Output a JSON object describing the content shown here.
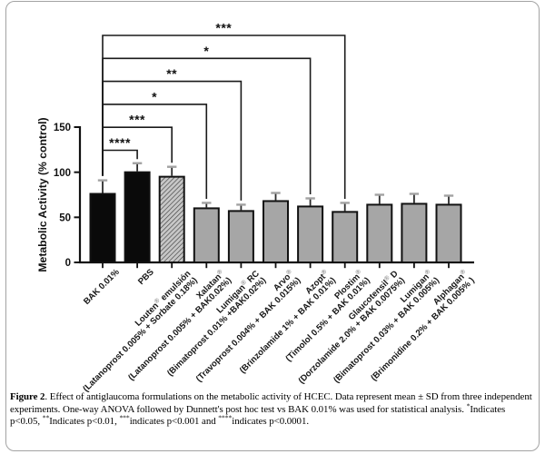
{
  "chart_data": {
    "type": "bar",
    "title": "",
    "xlabel": "",
    "ylabel": "Metabolic Activity (% control)",
    "ylim": [
      0,
      150
    ],
    "yticks": [
      0,
      50,
      100,
      150
    ],
    "grid": false,
    "legend": "none",
    "categories": [
      {
        "name": "BAK 0.01%",
        "composition": ""
      },
      {
        "name": "PBS",
        "composition": ""
      },
      {
        "name": "Louten® emulsión",
        "composition": "(Latanoprost 0.005% + Sorbate 0.18%)"
      },
      {
        "name": "Xalatan®",
        "composition": "(Latanoprost 0.005% + BAK0.02%)"
      },
      {
        "name": "Lumigan® RC",
        "composition": "(Bimatoprost 0.01% +BAK0.02%)"
      },
      {
        "name": "Arvo®",
        "composition": "(Travoprost 0.004% + BAK 0.015%)"
      },
      {
        "name": "Azopt®",
        "composition": "(Brinzolamide 1% + BAK 0.01%)"
      },
      {
        "name": "Plostim®",
        "composition": "(Timolol 0.5% + BAK 0.01%)"
      },
      {
        "name": "Glaucotensil® D",
        "composition": "(Dorzolamide 2.0% + BAK 0.0075%)"
      },
      {
        "name": "Lumigan®",
        "composition": "(Bimatoprost 0.03% + BAK 0.005%)"
      },
      {
        "name": "Alphagan®",
        "composition": "(Brimonidine 0.2% + BAK 0.005% )"
      }
    ],
    "values": [
      76,
      100,
      95,
      60,
      57,
      68,
      62,
      56,
      64,
      65,
      64
    ],
    "sd": [
      15,
      10,
      11,
      6,
      7,
      9,
      9,
      10,
      11,
      11,
      10
    ],
    "bar_styles": [
      "black",
      "black",
      "hatch",
      "gray",
      "gray",
      "gray",
      "gray",
      "gray",
      "gray",
      "gray",
      "gray"
    ],
    "significance_brackets": [
      {
        "from": 0,
        "to": 1,
        "label": "****",
        "level": 0
      },
      {
        "from": 0,
        "to": 2,
        "label": "***",
        "level": 1
      },
      {
        "from": 0,
        "to": 3,
        "label": "*",
        "level": 2
      },
      {
        "from": 0,
        "to": 4,
        "label": "**",
        "level": 3
      },
      {
        "from": 0,
        "to": 6,
        "label": "*",
        "level": 4
      },
      {
        "from": 0,
        "to": 7,
        "label": "***",
        "level": 5
      }
    ],
    "colors": {
      "axis": "#111111",
      "black_bar": "#0a0a0a",
      "gray_bar": "#a6a6a6",
      "bar_border": "#111111",
      "error_line": "#2b2b2b",
      "error_cap": "#a2a2a2",
      "hatch_bg": "#c7c7c7",
      "hatch_line": "#3a3a3a",
      "bracket": "#1a1a1a"
    }
  },
  "caption": {
    "figure_label": "Figure 2",
    "body_1": ". Effect of antiglaucoma formulations on the metabolic activity of HCEC. Data represent mean ± SD from three independent experiments. One-way ANOVA followed by Dunnett's post hoc test vs BAK 0.01% was used for statistical analysis. ",
    "sig1_sup": "*",
    "sig1_text": "Indicates p<0.05, ",
    "sig2_sup": "**",
    "sig2_text": "Indicates p<0.01, ",
    "sig3_sup": "***",
    "sig3_text": "indicates p<0.001 and ",
    "sig4_sup": "****",
    "sig4_text": "indicates p<0.0001."
  }
}
